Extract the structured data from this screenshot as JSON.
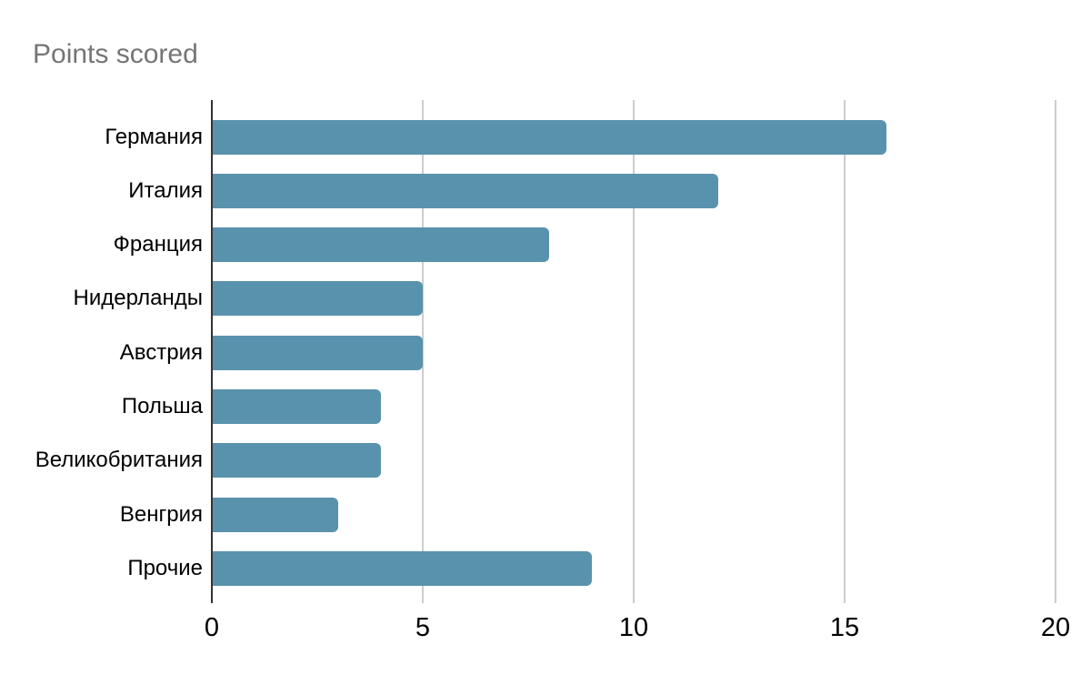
{
  "chart_title": "Points scored",
  "colors": {
    "bar": "#5992ac",
    "title": "#757575",
    "axis_line": "#333333",
    "gridline": "#cdcdcd",
    "tick_label": "#000000",
    "category_label": "#000000",
    "background": "#ffffff"
  },
  "chart_data": {
    "type": "bar",
    "orientation": "horizontal",
    "title": "Points scored",
    "categories": [
      "Германия",
      "Италия",
      "Франция",
      "Нидерланды",
      "Австрия",
      "Польша",
      "Великобритания",
      "Венгрия",
      "Прочие"
    ],
    "values": [
      16,
      12,
      8,
      5,
      5,
      4,
      4,
      3,
      9
    ],
    "xlabel": "",
    "ylabel": "",
    "xlim": [
      0,
      20
    ],
    "x_ticks": [
      0,
      5,
      10,
      15,
      20
    ],
    "grid": true,
    "legend": "none"
  }
}
